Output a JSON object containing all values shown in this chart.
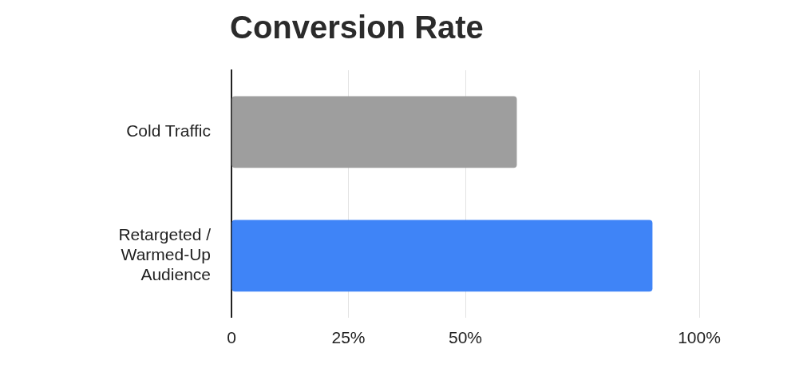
{
  "chart_data": {
    "type": "bar",
    "orientation": "horizontal",
    "title": "Conversion Rate",
    "categories": [
      "Cold Traffic",
      "Retargeted / Warmed-Up Audience"
    ],
    "values": [
      61,
      90
    ],
    "colors": [
      "#9e9e9e",
      "#3f84f7"
    ],
    "xlim": [
      0,
      100
    ],
    "xticks": [
      0,
      {
        "value": 25,
        "label": "25%"
      },
      {
        "value": 50,
        "label": "50%"
      },
      {
        "value": 100,
        "label": "100%"
      }
    ],
    "grid": "x",
    "legend": false
  }
}
